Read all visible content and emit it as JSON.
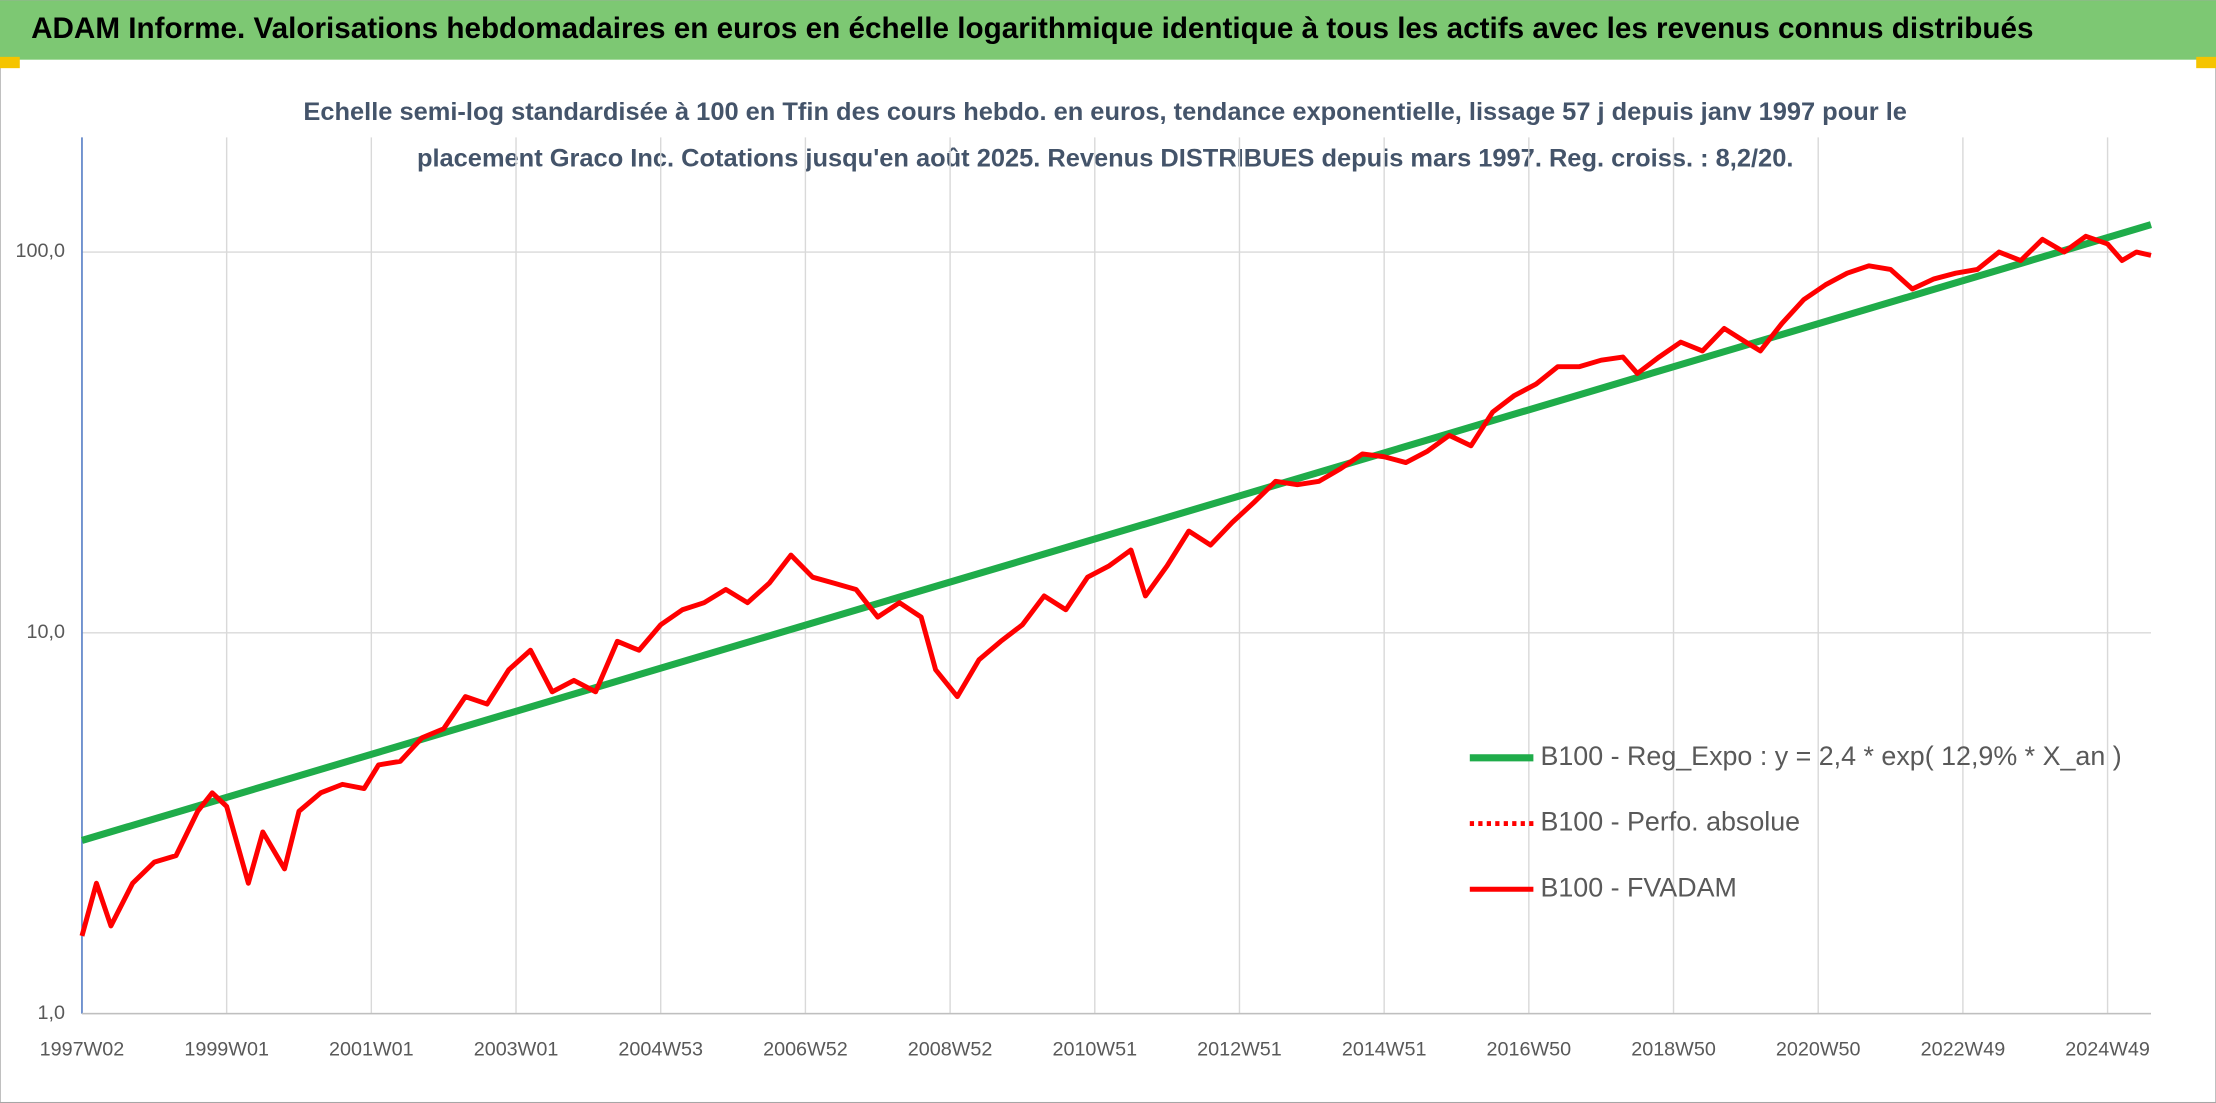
{
  "chart_data": {
    "type": "line",
    "title": "ADAM Informe. Valorisations hebdomadaires en euros en échelle logarithmique identique à tous les actifs avec les revenus connus distribués",
    "subtitle": [
      "Echelle semi-log standardisée à 100 en Tfin des cours hebdo. en euros, tendance exponentielle, lissage 57 j depuis janv 1997 pour le",
      "placement Graco Inc. Cotations jusqu'en août 2025. Revenus DISTRIBUES depuis mars 1997. Reg. croiss. : 8,2/20."
    ],
    "log_scale": true,
    "grid": true,
    "legend": "lower right",
    "xlim": [
      1997.0,
      2025.6
    ],
    "xticks": [
      {
        "value": 1997.0,
        "label": "1997W02"
      },
      {
        "value": 1999.0,
        "label": "1999W01"
      },
      {
        "value": 2001.0,
        "label": "2001W01"
      },
      {
        "value": 2003.0,
        "label": "2003W01"
      },
      {
        "value": 2005.0,
        "label": "2004W53"
      },
      {
        "value": 2007.0,
        "label": "2006W52"
      },
      {
        "value": 2009.0,
        "label": "2008W52"
      },
      {
        "value": 2011.0,
        "label": "2010W51"
      },
      {
        "value": 2013.0,
        "label": "2012W51"
      },
      {
        "value": 2015.0,
        "label": "2014W51"
      },
      {
        "value": 2017.0,
        "label": "2016W50"
      },
      {
        "value": 2019.0,
        "label": "2018W50"
      },
      {
        "value": 2021.0,
        "label": "2020W50"
      },
      {
        "value": 2023.0,
        "label": "2022W49"
      },
      {
        "value": 2025.0,
        "label": "2024W49"
      }
    ],
    "ylim": [
      1,
      200
    ],
    "yticks": [
      {
        "value": 1,
        "label": "1,0"
      },
      {
        "value": 10,
        "label": "10,0"
      },
      {
        "value": 100,
        "label": "100,0"
      }
    ],
    "series": [
      {
        "name": "B100 - Reg_Expo : y = 2,4 * exp( 12,9% *  X_an )",
        "color": "#1fac4a",
        "style": "solid",
        "x": [
          1997.0,
          2025.6
        ],
        "values": [
          2.85,
          118
        ]
      },
      {
        "name": "B100 - Perfo. absolue",
        "color": "#ff0000",
        "style": "dotted",
        "x": [],
        "values": []
      },
      {
        "name": "B100 - FVADAM",
        "color": "#ff0000",
        "style": "solid",
        "x": [
          1997.0,
          1997.2,
          1997.4,
          1997.7,
          1998.0,
          1998.3,
          1998.6,
          1998.8,
          1999.0,
          1999.3,
          1999.5,
          1999.8,
          2000.0,
          2000.3,
          2000.6,
          2000.9,
          2001.1,
          2001.4,
          2001.7,
          2002.0,
          2002.3,
          2002.6,
          2002.9,
          2003.2,
          2003.5,
          2003.8,
          2004.1,
          2004.4,
          2004.7,
          2005.0,
          2005.3,
          2005.6,
          2005.9,
          2006.2,
          2006.5,
          2006.8,
          2007.1,
          2007.4,
          2007.7,
          2008.0,
          2008.3,
          2008.6,
          2008.8,
          2009.1,
          2009.4,
          2009.7,
          2010.0,
          2010.3,
          2010.6,
          2010.9,
          2011.2,
          2011.5,
          2011.7,
          2012.0,
          2012.3,
          2012.6,
          2012.9,
          2013.2,
          2013.5,
          2013.8,
          2014.1,
          2014.4,
          2014.7,
          2015.0,
          2015.3,
          2015.6,
          2015.9,
          2016.2,
          2016.5,
          2016.8,
          2017.1,
          2017.4,
          2017.7,
          2018.0,
          2018.3,
          2018.5,
          2018.8,
          2019.1,
          2019.4,
          2019.7,
          2020.0,
          2020.2,
          2020.5,
          2020.8,
          2021.1,
          2021.4,
          2021.7,
          2022.0,
          2022.3,
          2022.6,
          2022.9,
          2023.2,
          2023.5,
          2023.8,
          2024.1,
          2024.4,
          2024.7,
          2025.0,
          2025.2,
          2025.4,
          2025.6
        ],
        "values": [
          1.6,
          2.2,
          1.7,
          2.2,
          2.5,
          2.6,
          3.4,
          3.8,
          3.5,
          2.2,
          3.0,
          2.4,
          3.4,
          3.8,
          4.0,
          3.9,
          4.5,
          4.6,
          5.3,
          5.6,
          6.8,
          6.5,
          8.0,
          9.0,
          7.0,
          7.5,
          7.0,
          9.5,
          9.0,
          10.5,
          11.5,
          12.0,
          13.0,
          12.0,
          13.5,
          16.0,
          14.0,
          13.5,
          13.0,
          11.0,
          12.0,
          11.0,
          8.0,
          6.8,
          8.5,
          9.5,
          10.5,
          12.5,
          11.5,
          14.0,
          15.0,
          16.5,
          12.5,
          15.0,
          18.5,
          17.0,
          19.5,
          22.0,
          25.0,
          24.5,
          25.0,
          27.0,
          29.5,
          29.0,
          28.0,
          30.0,
          33.0,
          31.0,
          38.0,
          42.0,
          45.0,
          50.0,
          50.0,
          52.0,
          53.0,
          48.0,
          53.0,
          58.0,
          55.0,
          63.0,
          58.0,
          55.0,
          65.0,
          75.0,
          82.0,
          88.0,
          92.0,
          90.0,
          80.0,
          85.0,
          88.0,
          90.0,
          100.0,
          95.0,
          108.0,
          100.0,
          110.0,
          105.0,
          95.0,
          100.0,
          98.0
        ]
      }
    ]
  }
}
